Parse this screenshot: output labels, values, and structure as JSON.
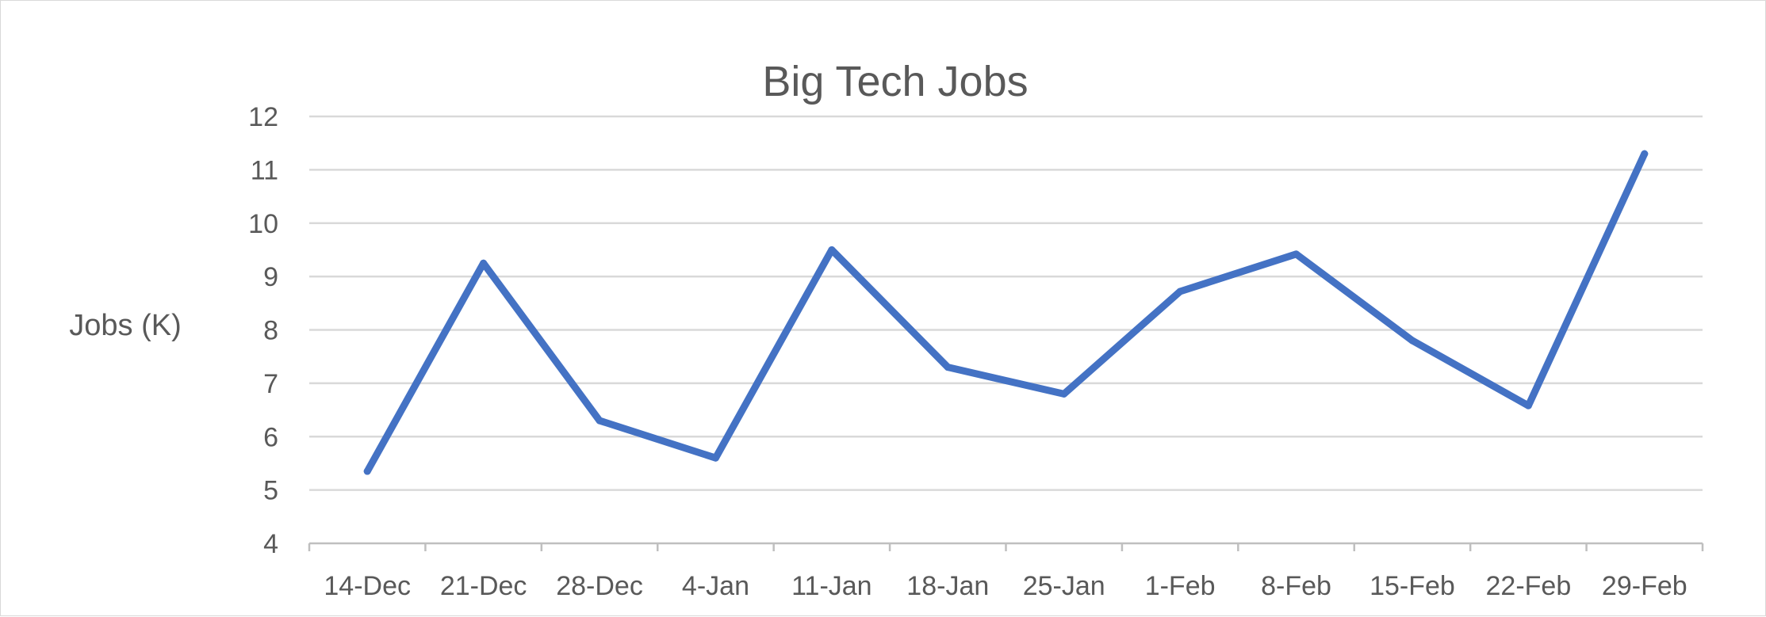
{
  "chart_data": {
    "type": "line",
    "title": "Big Tech Jobs",
    "xlabel": "",
    "ylabel": "Jobs (K)",
    "categories": [
      "14-Dec",
      "21-Dec",
      "28-Dec",
      "4-Jan",
      "11-Jan",
      "18-Jan",
      "25-Jan",
      "1-Feb",
      "8-Feb",
      "15-Feb",
      "22-Feb",
      "29-Feb"
    ],
    "series": [
      {
        "values": [
          5.35,
          9.25,
          6.3,
          5.6,
          9.5,
          7.3,
          6.8,
          8.72,
          9.42,
          7.8,
          6.58,
          11.3
        ],
        "color": "#4472C4"
      }
    ],
    "ylim": [
      4,
      12
    ],
    "yticks": [
      4,
      5,
      6,
      7,
      8,
      9,
      10,
      11,
      12
    ],
    "grid": true,
    "legend": "none"
  }
}
